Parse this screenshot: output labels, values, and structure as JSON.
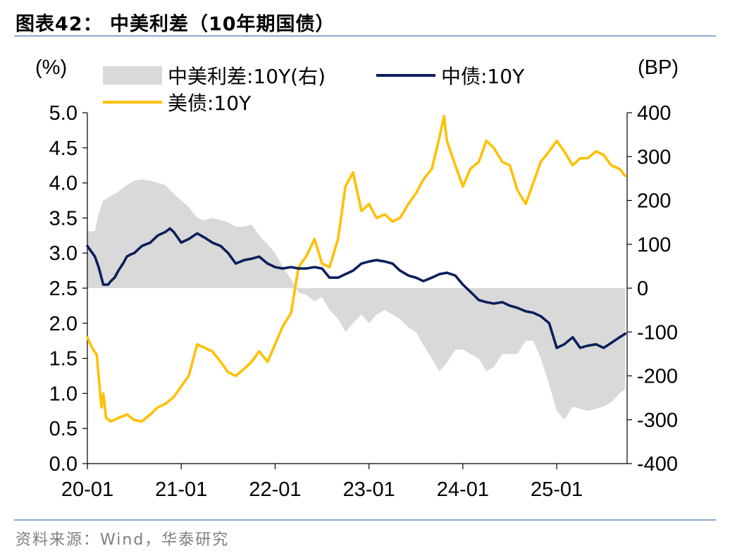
{
  "figure": {
    "title": "图表42：  中美利差（10年期国债）",
    "source": "资料来源：Wind，华泰研究"
  },
  "colors": {
    "spread": "#d9d9d9",
    "cn10y": "#0b1f5c",
    "us10y": "#ffc000",
    "rule": "#8ea9c9"
  },
  "chart_data": {
    "type": "line",
    "title": "中美利差（10年期国债）",
    "left_axis": {
      "unit": "(%)",
      "min": 0.0,
      "max": 5.0,
      "step": 0.5,
      "tick_labels": [
        "0.0",
        "0.5",
        "1.0",
        "1.5",
        "2.0",
        "2.5",
        "3.0",
        "3.5",
        "4.0",
        "4.5",
        "5.0"
      ]
    },
    "right_axis": {
      "unit": "(BP)",
      "min": -400,
      "max": 400,
      "step": 100,
      "tick_labels": [
        "-400",
        "-300",
        "-200",
        "-100",
        "0",
        "100",
        "200",
        "300",
        "400"
      ]
    },
    "x_axis": {
      "start": 2020.0,
      "end": 2025.75,
      "tick_labels": [
        "20-01",
        "21-01",
        "22-01",
        "23-01",
        "24-01",
        "25-01"
      ],
      "tick_values": [
        2020.0,
        2021.0,
        2022.0,
        2023.0,
        2024.0,
        2025.0
      ]
    },
    "legend": [
      {
        "key": "spread",
        "label": "中美利差:10Y(右)",
        "kind": "area"
      },
      {
        "key": "cn10y",
        "label": "中债:10Y",
        "kind": "line"
      },
      {
        "key": "us10y",
        "label": "美债:10Y",
        "kind": "line"
      }
    ],
    "series": [
      {
        "key": "cn10y",
        "name": "中债:10Y",
        "axis": "left",
        "x": [
          2020.0,
          2020.08,
          2020.12,
          2020.17,
          2020.22,
          2020.25,
          2020.29,
          2020.33,
          2020.38,
          2020.42,
          2020.46,
          2020.5,
          2020.54,
          2020.58,
          2020.67,
          2020.75,
          2020.83,
          2020.88,
          2020.92,
          2021.0,
          2021.08,
          2021.17,
          2021.25,
          2021.33,
          2021.42,
          2021.5,
          2021.58,
          2021.67,
          2021.75,
          2021.83,
          2021.92,
          2022.0,
          2022.08,
          2022.17,
          2022.25,
          2022.33,
          2022.42,
          2022.5,
          2022.58,
          2022.67,
          2022.75,
          2022.83,
          2022.92,
          2023.0,
          2023.08,
          2023.17,
          2023.25,
          2023.33,
          2023.42,
          2023.5,
          2023.58,
          2023.67,
          2023.75,
          2023.83,
          2023.92,
          2024.0,
          2024.08,
          2024.17,
          2024.25,
          2024.33,
          2024.42,
          2024.5,
          2024.58,
          2024.67,
          2024.75,
          2024.83,
          2024.92,
          2025.0,
          2025.08,
          2025.17,
          2025.25,
          2025.33,
          2025.42,
          2025.5,
          2025.58,
          2025.67,
          2025.73
        ],
        "values": [
          3.1,
          2.95,
          2.8,
          2.55,
          2.55,
          2.6,
          2.65,
          2.75,
          2.85,
          2.95,
          2.98,
          3.0,
          3.05,
          3.1,
          3.15,
          3.25,
          3.3,
          3.35,
          3.3,
          3.15,
          3.2,
          3.28,
          3.22,
          3.15,
          3.1,
          3.0,
          2.85,
          2.9,
          2.92,
          2.95,
          2.85,
          2.8,
          2.78,
          2.8,
          2.78,
          2.78,
          2.8,
          2.78,
          2.65,
          2.65,
          2.7,
          2.75,
          2.85,
          2.88,
          2.9,
          2.88,
          2.85,
          2.75,
          2.68,
          2.65,
          2.6,
          2.65,
          2.7,
          2.72,
          2.68,
          2.55,
          2.45,
          2.33,
          2.3,
          2.28,
          2.3,
          2.25,
          2.22,
          2.17,
          2.15,
          2.1,
          2.0,
          1.65,
          1.7,
          1.8,
          1.65,
          1.68,
          1.7,
          1.65,
          1.72,
          1.8,
          1.85
        ]
      },
      {
        "key": "us10y",
        "name": "美债:10Y",
        "axis": "left",
        "x": [
          2020.0,
          2020.05,
          2020.1,
          2020.15,
          2020.17,
          2020.2,
          2020.25,
          2020.33,
          2020.42,
          2020.5,
          2020.58,
          2020.67,
          2020.75,
          2020.83,
          2020.92,
          2021.0,
          2021.08,
          2021.17,
          2021.25,
          2021.33,
          2021.42,
          2021.5,
          2021.58,
          2021.67,
          2021.75,
          2021.83,
          2021.92,
          2022.0,
          2022.08,
          2022.17,
          2022.25,
          2022.33,
          2022.42,
          2022.5,
          2022.58,
          2022.67,
          2022.75,
          2022.83,
          2022.92,
          2023.0,
          2023.08,
          2023.17,
          2023.25,
          2023.33,
          2023.42,
          2023.5,
          2023.58,
          2023.67,
          2023.75,
          2023.8,
          2023.83,
          2023.92,
          2024.0,
          2024.08,
          2024.17,
          2024.25,
          2024.33,
          2024.42,
          2024.5,
          2024.58,
          2024.67,
          2024.75,
          2024.83,
          2024.92,
          2025.0,
          2025.08,
          2025.17,
          2025.25,
          2025.33,
          2025.42,
          2025.5,
          2025.58,
          2025.67,
          2025.73
        ],
        "values": [
          1.8,
          1.65,
          1.55,
          0.8,
          1.0,
          0.65,
          0.6,
          0.65,
          0.7,
          0.62,
          0.6,
          0.7,
          0.8,
          0.85,
          0.95,
          1.1,
          1.25,
          1.7,
          1.65,
          1.6,
          1.45,
          1.3,
          1.25,
          1.35,
          1.45,
          1.6,
          1.45,
          1.7,
          1.95,
          2.15,
          2.8,
          2.95,
          3.2,
          2.85,
          2.8,
          3.2,
          3.95,
          4.15,
          3.6,
          3.7,
          3.5,
          3.55,
          3.45,
          3.5,
          3.7,
          3.85,
          4.05,
          4.2,
          4.65,
          4.95,
          4.6,
          4.25,
          3.95,
          4.2,
          4.3,
          4.6,
          4.5,
          4.3,
          4.25,
          3.9,
          3.7,
          4.0,
          4.3,
          4.45,
          4.6,
          4.45,
          4.25,
          4.35,
          4.35,
          4.45,
          4.4,
          4.25,
          4.2,
          4.1
        ]
      },
      {
        "key": "spread",
        "name": "中美利差:10Y(右)",
        "axis": "right",
        "x": [
          2020.0,
          2020.08,
          2020.12,
          2020.17,
          2020.25,
          2020.33,
          2020.42,
          2020.5,
          2020.58,
          2020.67,
          2020.75,
          2020.83,
          2020.92,
          2021.0,
          2021.08,
          2021.17,
          2021.25,
          2021.33,
          2021.42,
          2021.5,
          2021.58,
          2021.67,
          2021.75,
          2021.83,
          2021.92,
          2022.0,
          2022.08,
          2022.17,
          2022.25,
          2022.33,
          2022.42,
          2022.5,
          2022.58,
          2022.67,
          2022.75,
          2022.83,
          2022.92,
          2023.0,
          2023.08,
          2023.17,
          2023.25,
          2023.33,
          2023.42,
          2023.5,
          2023.58,
          2023.67,
          2023.75,
          2023.83,
          2023.92,
          2024.0,
          2024.08,
          2024.17,
          2024.25,
          2024.33,
          2024.42,
          2024.5,
          2024.58,
          2024.67,
          2024.75,
          2024.83,
          2024.92,
          2025.0,
          2025.08,
          2025.17,
          2025.25,
          2025.33,
          2025.42,
          2025.5,
          2025.58,
          2025.67,
          2025.73
        ],
        "values": [
          130,
          130,
          170,
          200,
          210,
          220,
          235,
          245,
          248,
          245,
          240,
          235,
          215,
          200,
          185,
          160,
          155,
          160,
          155,
          150,
          140,
          140,
          145,
          120,
          100,
          80,
          50,
          20,
          -10,
          -15,
          -30,
          -20,
          -50,
          -70,
          -100,
          -80,
          -60,
          -80,
          -60,
          -50,
          -60,
          -70,
          -90,
          -100,
          -130,
          -160,
          -190,
          -170,
          -140,
          -140,
          -150,
          -160,
          -190,
          -180,
          -150,
          -150,
          -150,
          -120,
          -120,
          -160,
          -220,
          -280,
          -300,
          -270,
          -275,
          -280,
          -275,
          -270,
          -260,
          -240,
          -230
        ]
      }
    ]
  }
}
